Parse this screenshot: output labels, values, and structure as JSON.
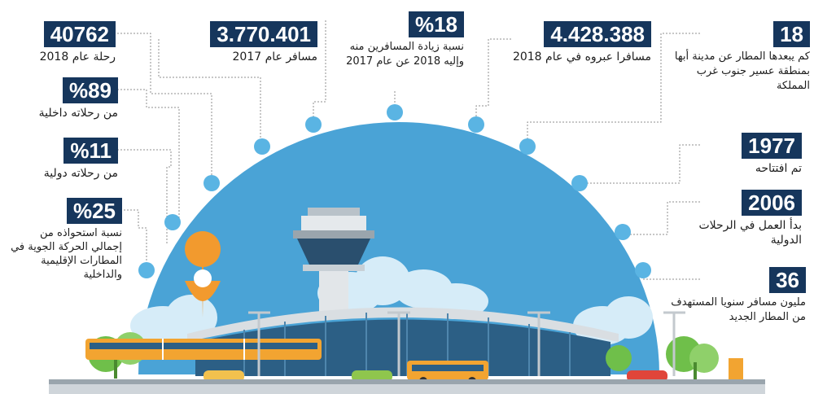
{
  "colors": {
    "navy": "#16365c",
    "dome": "#4aa3d6",
    "dot": "#5ab4e3",
    "connector": "#8f8f8f",
    "pin": "#f29a2e",
    "grass": "#6fbf4a"
  },
  "stats": [
    {
      "id": "trips-2018",
      "value": "40762",
      "label": "رحلة عام 2018"
    },
    {
      "id": "passengers-2017",
      "value": "3.770.401",
      "label": "مسافر عام 2017"
    },
    {
      "id": "increase",
      "value": "%18",
      "label": "نسبة زيادة المسافرين منه وإليه 2018 عن عام 2017"
    },
    {
      "id": "passengers-2018",
      "value": "4.428.388",
      "label": "مسافرا عبروه في عام 2018"
    },
    {
      "id": "distance",
      "value": "18",
      "label": "كم يبعدها المطار عن مدينة أبها بمنطقة عسير جنوب غرب المملكة"
    },
    {
      "id": "domestic",
      "value": "%89",
      "label": "من رحلاته داخلية"
    },
    {
      "id": "opened",
      "value": "1977",
      "label": "تم افتتاحه"
    },
    {
      "id": "international",
      "value": "%11",
      "label": "من رحلاته دولية"
    },
    {
      "id": "intl-start",
      "value": "2006",
      "label": "بدأ العمل في الرحلات الدولية"
    },
    {
      "id": "share",
      "value": "%25",
      "label": "نسبة استحواذه من إجمالي الحركة الجوية في المطارات الإقليمية والداخلية"
    },
    {
      "id": "capacity",
      "value": "36",
      "label": "مليون مسافر سنويا المستهدف من المطار الجديد"
    }
  ]
}
